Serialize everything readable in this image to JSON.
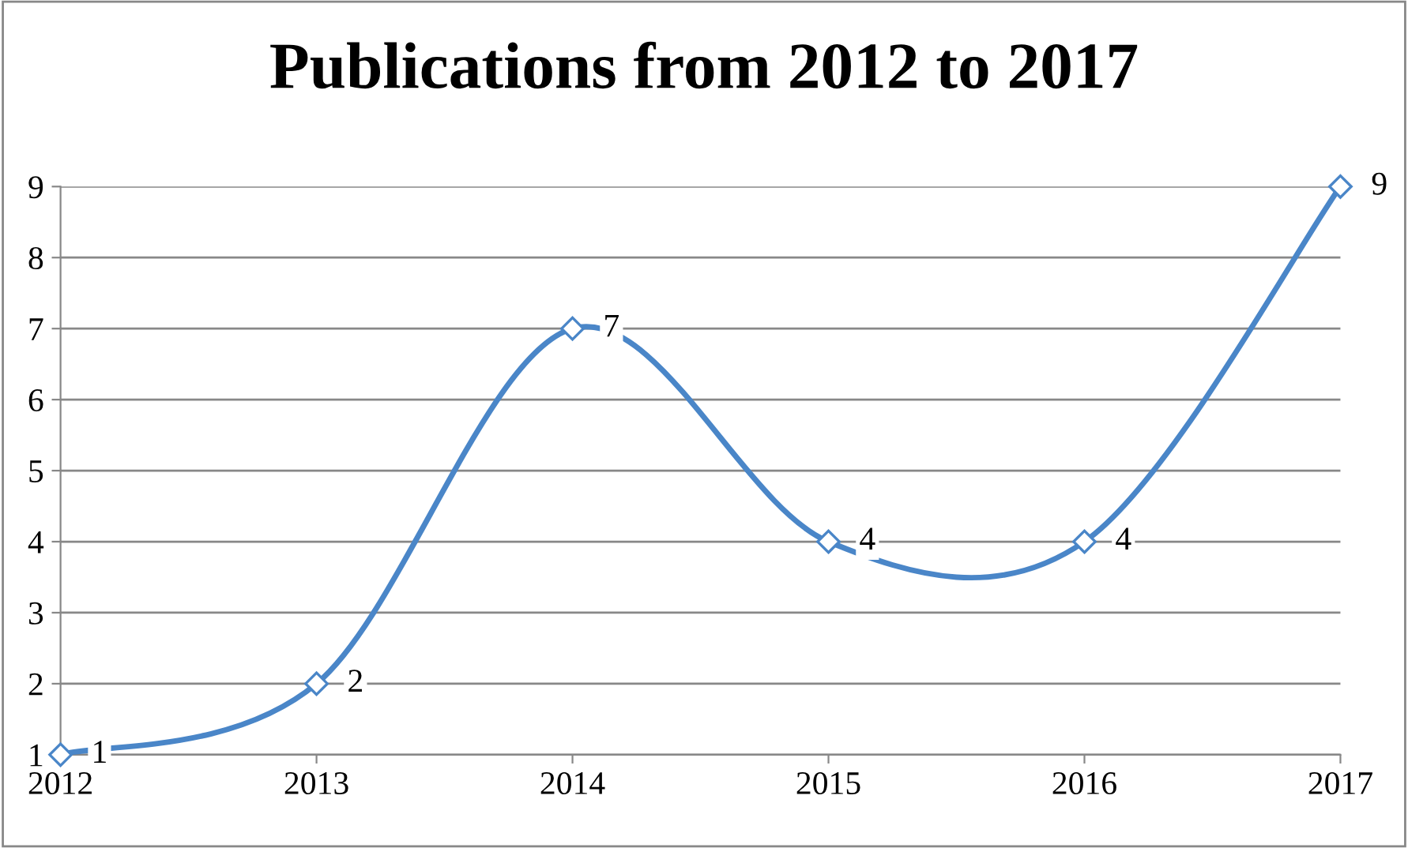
{
  "chart_data": {
    "type": "line",
    "title": "Publications from 2012 to 2017",
    "x": [
      2012,
      2013,
      2014,
      2015,
      2016,
      2017
    ],
    "series": [
      {
        "color": "#4a86c8",
        "values": [
          1,
          2,
          7,
          4,
          4,
          9
        ]
      }
    ],
    "xlim": [
      2012,
      2017
    ],
    "xticks": [
      2012,
      2013,
      2014,
      2015,
      2016,
      2017
    ],
    "ylim": [
      1,
      9
    ],
    "yticks": [
      1,
      2,
      3,
      4,
      5,
      6,
      7,
      8,
      9
    ],
    "grid": "y",
    "marker": "diamond",
    "line_style": "solid",
    "data_labels": true
  }
}
